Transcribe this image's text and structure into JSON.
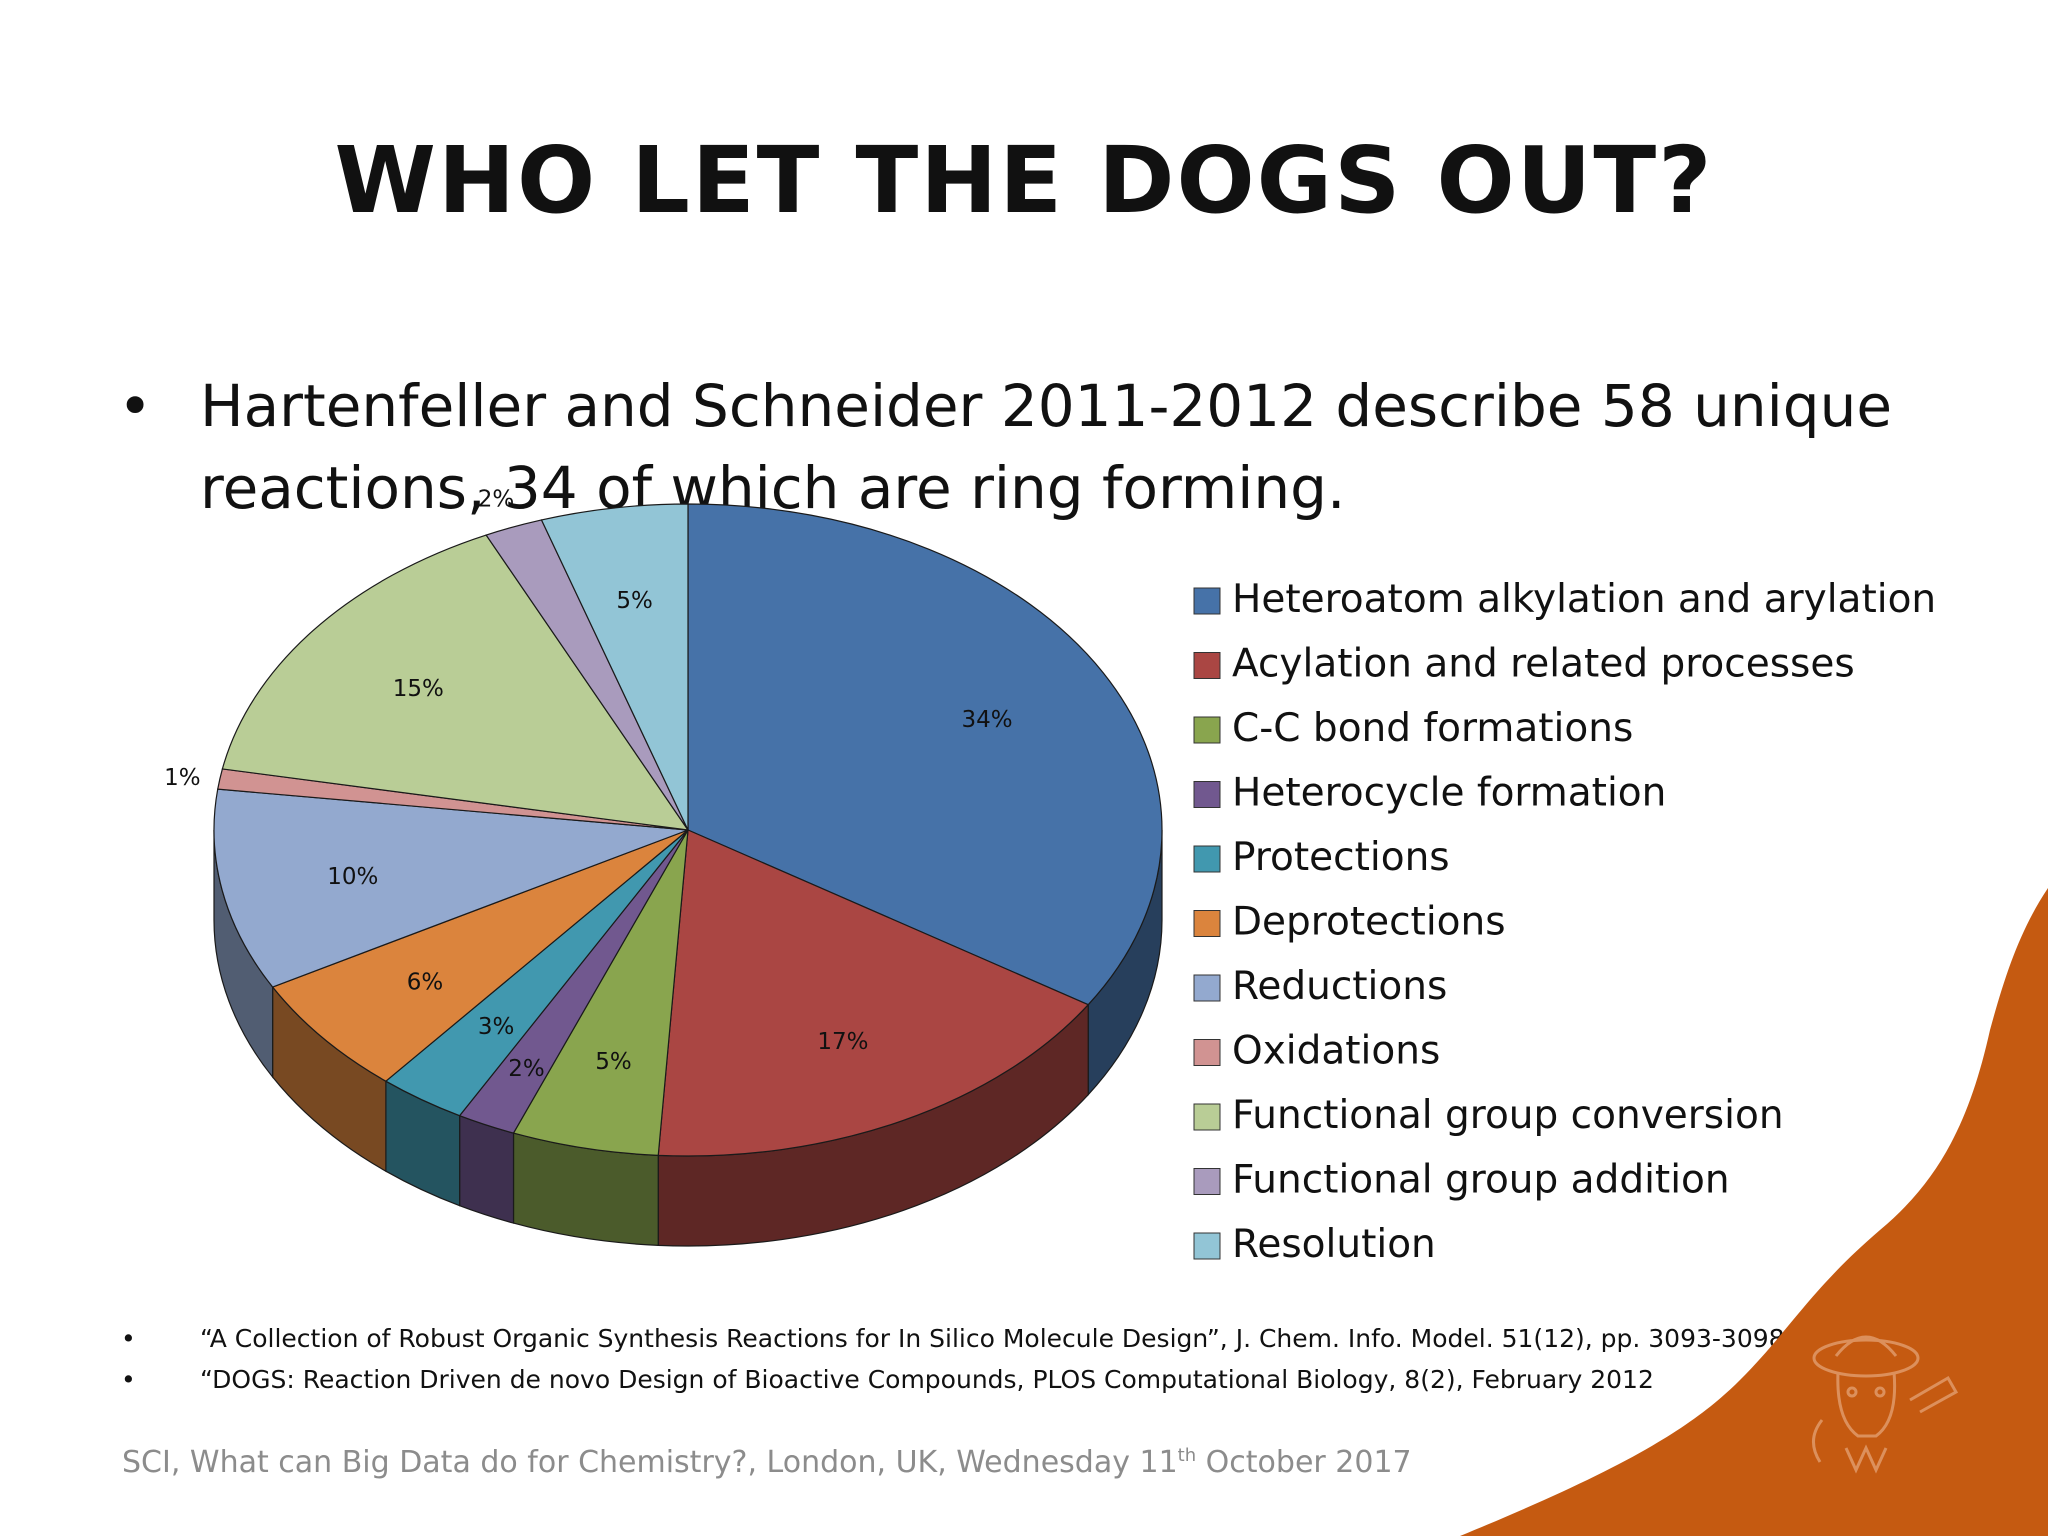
{
  "slide": {
    "title": "WHO LET THE DOGS OUT?",
    "bullet": "Hartenfeller and Schneider 2011-2012 describe 58 unique reactions, 34 of which are ring forming.",
    "references": [
      "“A Collection of Robust Organic Synthesis Reactions for In Silico Molecule Design”, J. Chem. Info. Model. 51(12), pp. 3093-3098, 2011/",
      "“DOGS: Reaction Driven de novo Design of Bioactive Compounds, PLOS Computational Biology, 8(2), February 2012"
    ],
    "footer": {
      "prefix": "SCI, What can Big Data do for Chemistry?, London, UK, Wednesday 11",
      "sup": "th",
      "suffix": " October 2017"
    },
    "accent_color": "#c55a11"
  },
  "chart_data": {
    "type": "pie",
    "title": "",
    "style": "3d",
    "legend_position": "right",
    "categories": [
      "Heteroatom alkylation and arylation",
      "Acylation and related processes",
      "C-C bond formations",
      "Heterocycle formation",
      "Protections",
      "Deprotections",
      "Reductions",
      "Oxidations",
      "Functional group conversion",
      "Functional group addition",
      "Resolution"
    ],
    "values": [
      34,
      17,
      5,
      2,
      3,
      6,
      10,
      1,
      15,
      2,
      5
    ],
    "labels": [
      "34%",
      "17%",
      "5%",
      "2%",
      "3%",
      "6%",
      "10%",
      "1%",
      "15%",
      "2%",
      "5%"
    ],
    "colors": [
      "#4672a8",
      "#aa4643",
      "#89a54e",
      "#71588f",
      "#4198af",
      "#db843d",
      "#93a9cf",
      "#d19392",
      "#b9cd96",
      "#a99bbd",
      "#92c5d6"
    ]
  }
}
